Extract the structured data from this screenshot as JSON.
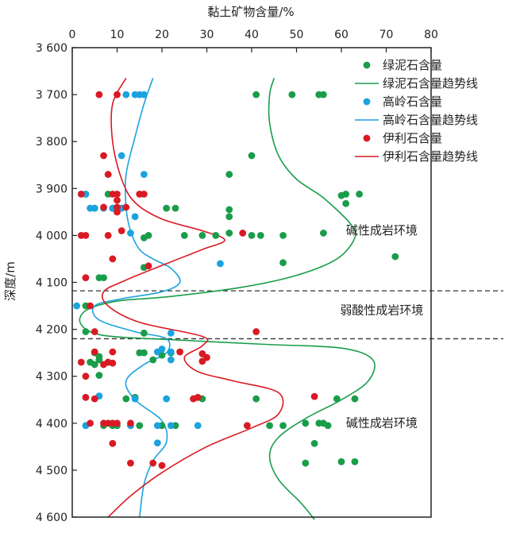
{
  "chart_data": {
    "type": "scatter",
    "xlabel": "黏土矿物含量/%",
    "ylabel": "深度/m",
    "xlim": [
      0,
      80
    ],
    "ylim": [
      3600,
      4600
    ],
    "x_ticks": [
      {
        "v": 0,
        "label": "0"
      },
      {
        "v": 10,
        "label": "10"
      },
      {
        "v": 20,
        "label": "20"
      },
      {
        "v": 30,
        "label": "30"
      },
      {
        "v": 40,
        "label": "40"
      },
      {
        "v": 50,
        "label": "50"
      },
      {
        "v": 60,
        "label": "60"
      },
      {
        "v": 70,
        "label": "70"
      },
      {
        "v": 80,
        "label": "80"
      }
    ],
    "y_ticks": [
      {
        "v": 3600,
        "label": "3 600"
      },
      {
        "v": 3700,
        "label": "3 700"
      },
      {
        "v": 3800,
        "label": "3 800"
      },
      {
        "v": 3900,
        "label": "3 900"
      },
      {
        "v": 4000,
        "label": "4 000"
      },
      {
        "v": 4100,
        "label": "4 100"
      },
      {
        "v": 4200,
        "label": "4 200"
      },
      {
        "v": 4300,
        "label": "4 300"
      },
      {
        "v": 4400,
        "label": "4 400"
      },
      {
        "v": 4500,
        "label": "4 500"
      },
      {
        "v": 4600,
        "label": "4 600"
      }
    ],
    "y_inverted": true,
    "x_axis_position": "top",
    "grid": false,
    "legend_position": "top-right",
    "boundaries": [
      4118,
      4220
    ],
    "zones": [
      {
        "label": "碱性成岩环境",
        "x": 69,
        "y": 3998
      },
      {
        "label": "弱酸性成岩环境",
        "x": 69,
        "y": 4168
      },
      {
        "label": "碱性成岩环境",
        "x": 69,
        "y": 4408
      }
    ],
    "series": [
      {
        "name": "绿泥石含量",
        "kind": "scatter",
        "color": "#1a9d4a",
        "points": [
          [
            41,
            3700
          ],
          [
            49,
            3700
          ],
          [
            55,
            3700
          ],
          [
            56,
            3700
          ],
          [
            40,
            3830
          ],
          [
            35,
            3870
          ],
          [
            60,
            3915
          ],
          [
            61,
            3912
          ],
          [
            64,
            3912
          ],
          [
            61,
            3932
          ],
          [
            3,
            3912
          ],
          [
            8,
            3912
          ],
          [
            5,
            3942
          ],
          [
            9,
            3942
          ],
          [
            11,
            3942
          ],
          [
            21,
            3942
          ],
          [
            23,
            3942
          ],
          [
            35,
            3945
          ],
          [
            35,
            3960
          ],
          [
            25,
            4000
          ],
          [
            29,
            4000
          ],
          [
            32,
            4000
          ],
          [
            35,
            3995
          ],
          [
            40,
            4000
          ],
          [
            42,
            4000
          ],
          [
            47,
            4000
          ],
          [
            56,
            3995
          ],
          [
            16,
            4005
          ],
          [
            17,
            4000
          ],
          [
            72,
            4045
          ],
          [
            47,
            4058
          ],
          [
            16,
            4068
          ],
          [
            6,
            4090
          ],
          [
            7,
            4090
          ],
          [
            3,
            4150
          ],
          [
            3,
            4205
          ],
          [
            16,
            4208
          ],
          [
            5,
            4250
          ],
          [
            6,
            4258
          ],
          [
            15,
            4250
          ],
          [
            16,
            4250
          ],
          [
            20,
            4255
          ],
          [
            22,
            4250
          ],
          [
            4,
            4270
          ],
          [
            5,
            4275
          ],
          [
            6,
            4265
          ],
          [
            8,
            4270
          ],
          [
            18,
            4265
          ],
          [
            6,
            4298
          ],
          [
            12,
            4348
          ],
          [
            14,
            4345
          ],
          [
            29,
            4348
          ],
          [
            41,
            4348
          ],
          [
            59,
            4348
          ],
          [
            63,
            4348
          ],
          [
            7,
            4405
          ],
          [
            9,
            4405
          ],
          [
            10,
            4405
          ],
          [
            13,
            4405
          ],
          [
            15,
            4405
          ],
          [
            20,
            4405
          ],
          [
            23,
            4405
          ],
          [
            44,
            4405
          ],
          [
            47,
            4405
          ],
          [
            52,
            4400
          ],
          [
            55,
            4400
          ],
          [
            56,
            4400
          ],
          [
            57,
            4405
          ],
          [
            54,
            4443
          ],
          [
            52,
            4485
          ],
          [
            60,
            4482
          ],
          [
            63,
            4482
          ]
        ]
      },
      {
        "name": "绿泥石含量趋势线",
        "kind": "line",
        "color": "#1a9d4a",
        "points": [
          [
            45,
            3665
          ],
          [
            44,
            3700
          ],
          [
            44,
            3760
          ],
          [
            46,
            3830
          ],
          [
            50,
            3880
          ],
          [
            56,
            3920
          ],
          [
            62,
            3975
          ],
          [
            63,
            4005
          ],
          [
            59,
            4050
          ],
          [
            50,
            4085
          ],
          [
            38,
            4110
          ],
          [
            22,
            4130
          ],
          [
            10,
            4140
          ],
          [
            3,
            4160
          ],
          [
            2,
            4190
          ],
          [
            7,
            4213
          ],
          [
            22,
            4222
          ],
          [
            43,
            4232
          ],
          [
            60,
            4240
          ],
          [
            67,
            4265
          ],
          [
            66,
            4310
          ],
          [
            60,
            4350
          ],
          [
            52,
            4390
          ],
          [
            46,
            4430
          ],
          [
            44,
            4470
          ],
          [
            46,
            4520
          ],
          [
            51,
            4570
          ],
          [
            54,
            4605
          ]
        ]
      },
      {
        "name": "高岭石含量",
        "kind": "scatter",
        "color": "#1ba3e0",
        "points": [
          [
            12,
            3700
          ],
          [
            14,
            3700
          ],
          [
            15,
            3700
          ],
          [
            16,
            3700
          ],
          [
            11,
            3830
          ],
          [
            16,
            3870
          ],
          [
            3,
            3912
          ],
          [
            4,
            3942
          ],
          [
            5,
            3942
          ],
          [
            7,
            3942
          ],
          [
            9,
            3942
          ],
          [
            11,
            3942
          ],
          [
            14,
            3960
          ],
          [
            13,
            3995
          ],
          [
            33,
            4060
          ],
          [
            1,
            4150
          ],
          [
            22,
            4208
          ],
          [
            19,
            4248
          ],
          [
            20,
            4242
          ],
          [
            22,
            4248
          ],
          [
            22,
            4265
          ],
          [
            6,
            4342
          ],
          [
            14,
            4348
          ],
          [
            21,
            4348
          ],
          [
            3,
            4405
          ],
          [
            13,
            4405
          ],
          [
            19,
            4405
          ],
          [
            22,
            4405
          ],
          [
            28,
            4405
          ],
          [
            19,
            4442
          ]
        ]
      },
      {
        "name": "高岭石含量趋势线",
        "kind": "line",
        "color": "#1ba3e0",
        "points": [
          [
            18,
            3665
          ],
          [
            16,
            3720
          ],
          [
            14,
            3790
          ],
          [
            12,
            3870
          ],
          [
            12,
            3940
          ],
          [
            13,
            3990
          ],
          [
            15,
            4030
          ],
          [
            18,
            4050
          ],
          [
            22,
            4070
          ],
          [
            24,
            4100
          ],
          [
            20,
            4120
          ],
          [
            11,
            4135
          ],
          [
            5,
            4150
          ],
          [
            6,
            4180
          ],
          [
            14,
            4205
          ],
          [
            21,
            4220
          ],
          [
            21,
            4250
          ],
          [
            16,
            4275
          ],
          [
            12,
            4310
          ],
          [
            14,
            4350
          ],
          [
            20,
            4395
          ],
          [
            21,
            4440
          ],
          [
            18,
            4480
          ],
          [
            16,
            4530
          ],
          [
            15,
            4600
          ]
        ]
      },
      {
        "name": "伊利石含量",
        "kind": "scatter",
        "color": "#d91a24",
        "points": [
          [
            6,
            3700
          ],
          [
            10,
            3700
          ],
          [
            7,
            3830
          ],
          [
            8,
            3870
          ],
          [
            2,
            3912
          ],
          [
            9,
            3912
          ],
          [
            10,
            3912
          ],
          [
            15,
            3912
          ],
          [
            16,
            3912
          ],
          [
            10,
            3925
          ],
          [
            7,
            3940
          ],
          [
            10,
            3940
          ],
          [
            12,
            3940
          ],
          [
            10,
            3950
          ],
          [
            2,
            4000
          ],
          [
            3,
            4000
          ],
          [
            8,
            4000
          ],
          [
            11,
            3990
          ],
          [
            38,
            3995
          ],
          [
            9,
            4050
          ],
          [
            17,
            4065
          ],
          [
            3,
            4090
          ],
          [
            4,
            4150
          ],
          [
            5,
            4205
          ],
          [
            41,
            4205
          ],
          [
            5,
            4248
          ],
          [
            9,
            4248
          ],
          [
            24,
            4248
          ],
          [
            29,
            4252
          ],
          [
            30,
            4260
          ],
          [
            29,
            4268
          ],
          [
            2,
            4270
          ],
          [
            7,
            4275
          ],
          [
            8,
            4270
          ],
          [
            9,
            4272
          ],
          [
            3,
            4300
          ],
          [
            3,
            4345
          ],
          [
            5,
            4348
          ],
          [
            27,
            4348
          ],
          [
            28,
            4345
          ],
          [
            54,
            4343
          ],
          [
            4,
            4400
          ],
          [
            7,
            4400
          ],
          [
            8,
            4400
          ],
          [
            9,
            4400
          ],
          [
            10,
            4400
          ],
          [
            13,
            4400
          ],
          [
            39,
            4405
          ],
          [
            9,
            4443
          ],
          [
            13,
            4485
          ],
          [
            18,
            4485
          ],
          [
            20,
            4490
          ]
        ]
      },
      {
        "name": "伊利石含量趋势线",
        "kind": "line",
        "color": "#d91a24",
        "points": [
          [
            12,
            3665
          ],
          [
            9,
            3720
          ],
          [
            9,
            3800
          ],
          [
            11,
            3880
          ],
          [
            14,
            3930
          ],
          [
            20,
            3965
          ],
          [
            29,
            3990
          ],
          [
            34,
            4010
          ],
          [
            29,
            4030
          ],
          [
            21,
            4060
          ],
          [
            12,
            4095
          ],
          [
            7,
            4120
          ],
          [
            8,
            4150
          ],
          [
            15,
            4185
          ],
          [
            29,
            4215
          ],
          [
            29,
            4235
          ],
          [
            25,
            4260
          ],
          [
            28,
            4290
          ],
          [
            36,
            4310
          ],
          [
            46,
            4335
          ],
          [
            46,
            4380
          ],
          [
            40,
            4410
          ],
          [
            30,
            4450
          ],
          [
            20,
            4505
          ],
          [
            13,
            4555
          ],
          [
            8,
            4600
          ]
        ]
      }
    ]
  }
}
